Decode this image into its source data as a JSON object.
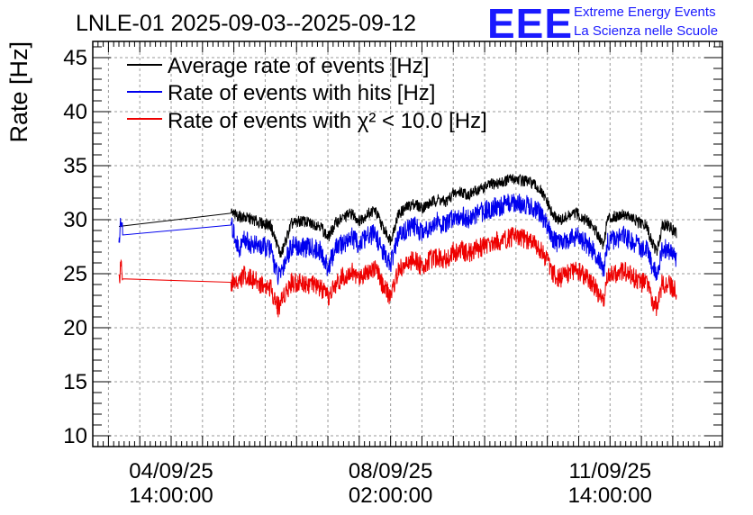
{
  "title": "LNLE-01 2025-09-03--2025-09-12",
  "logo": {
    "mark": "EEE",
    "line1": "Extreme Energy Events",
    "line2": "La Scienza nelle Scuole",
    "color": "#1a1aff"
  },
  "chart_data": {
    "type": "line",
    "title": "LNLE-01 2025-09-03--2025-09-12",
    "xlabel": "",
    "ylabel": "Rate [Hz]",
    "x_unit": "hours since 2025-09-03 00:00",
    "xlim": [
      8,
      249
    ],
    "ylim": [
      9,
      46.5
    ],
    "yticks": [
      10,
      15,
      20,
      25,
      30,
      35,
      40,
      45
    ],
    "xticks": [
      {
        "x": 38,
        "label": [
          "04/09/25",
          "14:00:00"
        ]
      },
      {
        "x": 122,
        "label": [
          "08/09/25",
          "02:00:00"
        ]
      },
      {
        "x": 206,
        "label": [
          "11/09/25",
          "14:00:00"
        ]
      }
    ],
    "grid": true,
    "legend_position": "top-left",
    "series": [
      {
        "name": "Average rate of events [Hz]",
        "color": "#000000",
        "gap": [
          18,
          61
        ],
        "points": [
          [
            18,
            29.5
          ],
          [
            18.7,
            30.4
          ],
          [
            19.5,
            30.2
          ],
          [
            61,
            30.6
          ],
          [
            64,
            30.3
          ],
          [
            68,
            30.1
          ],
          [
            72,
            29.7
          ],
          [
            76,
            29.5
          ],
          [
            80,
            26.7
          ],
          [
            84,
            29.6
          ],
          [
            88,
            29.9
          ],
          [
            92,
            29.6
          ],
          [
            95,
            29.5
          ],
          [
            98,
            28.3
          ],
          [
            101,
            29.7
          ],
          [
            104,
            30.2
          ],
          [
            107,
            30.6
          ],
          [
            110,
            29.9
          ],
          [
            113,
            30.5
          ],
          [
            116,
            30.9
          ],
          [
            119,
            29.3
          ],
          [
            122,
            28.1
          ],
          [
            125,
            30.5
          ],
          [
            128,
            31.1
          ],
          [
            131,
            31.5
          ],
          [
            134,
            31.1
          ],
          [
            137,
            31.5
          ],
          [
            140,
            31.9
          ],
          [
            143,
            31.6
          ],
          [
            146,
            32.4
          ],
          [
            149,
            32.6
          ],
          [
            152,
            32.3
          ],
          [
            155,
            32.7
          ],
          [
            158,
            33.0
          ],
          [
            161,
            33.3
          ],
          [
            164,
            33.4
          ],
          [
            167,
            33.7
          ],
          [
            170,
            33.8
          ],
          [
            173,
            33.6
          ],
          [
            176,
            33.4
          ],
          [
            179,
            32.8
          ],
          [
            182,
            31.6
          ],
          [
            184,
            30.4
          ],
          [
            187,
            29.9
          ],
          [
            190,
            30.3
          ],
          [
            193,
            30.6
          ],
          [
            196,
            30.1
          ],
          [
            199,
            29.5
          ],
          [
            202,
            28.4
          ],
          [
            203.5,
            27.6
          ],
          [
            205,
            30.1
          ],
          [
            208,
            30.3
          ],
          [
            211,
            30.6
          ],
          [
            214,
            30.2
          ],
          [
            217,
            29.7
          ],
          [
            220,
            29.4
          ],
          [
            222,
            27.9
          ],
          [
            224,
            27.0
          ],
          [
            226,
            29.6
          ],
          [
            229,
            29.3
          ],
          [
            231.5,
            28.7
          ]
        ]
      },
      {
        "name": "Rate of events with hits [Hz]",
        "color": "#0000ee",
        "gap": [
          19.5,
          61
        ],
        "points": [
          [
            18,
            27.8
          ],
          [
            18.7,
            29.6
          ],
          [
            19.5,
            28.8
          ],
          [
            61,
            29.5
          ],
          [
            64,
            27.2
          ],
          [
            66,
            28.3
          ],
          [
            68,
            27.8
          ],
          [
            72,
            27.5
          ],
          [
            76,
            27.3
          ],
          [
            79,
            24.6
          ],
          [
            81,
            25.8
          ],
          [
            84,
            27.6
          ],
          [
            88,
            27.4
          ],
          [
            92,
            27.4
          ],
          [
            95,
            27.1
          ],
          [
            98,
            25.5
          ],
          [
            101,
            27.4
          ],
          [
            104,
            27.8
          ],
          [
            107,
            28.4
          ],
          [
            110,
            27.7
          ],
          [
            113,
            28.4
          ],
          [
            116,
            28.7
          ],
          [
            119,
            27.0
          ],
          [
            122,
            25.9
          ],
          [
            125,
            28.4
          ],
          [
            128,
            29.1
          ],
          [
            131,
            29.4
          ],
          [
            134,
            28.9
          ],
          [
            137,
            29.4
          ],
          [
            140,
            29.8
          ],
          [
            143,
            29.4
          ],
          [
            146,
            30.3
          ],
          [
            149,
            30.4
          ],
          [
            152,
            30.0
          ],
          [
            155,
            30.5
          ],
          [
            158,
            30.8
          ],
          [
            161,
            31.1
          ],
          [
            164,
            31.2
          ],
          [
            167,
            31.5
          ],
          [
            170,
            31.6
          ],
          [
            173,
            31.4
          ],
          [
            176,
            31.3
          ],
          [
            179,
            30.6
          ],
          [
            182,
            29.4
          ],
          [
            184,
            28.2
          ],
          [
            187,
            27.7
          ],
          [
            190,
            28.2
          ],
          [
            193,
            28.5
          ],
          [
            196,
            28.0
          ],
          [
            199,
            27.3
          ],
          [
            202,
            26.2
          ],
          [
            203.5,
            25.3
          ],
          [
            205,
            28.0
          ],
          [
            208,
            28.2
          ],
          [
            211,
            28.5
          ],
          [
            214,
            28.0
          ],
          [
            217,
            27.5
          ],
          [
            220,
            27.3
          ],
          [
            222,
            25.8
          ],
          [
            224,
            24.8
          ],
          [
            226,
            27.4
          ],
          [
            229,
            27.1
          ],
          [
            231.5,
            26.5
          ]
        ]
      },
      {
        "name": "Rate of events with χ² < 10.0 [Hz]",
        "color": "#ee0000",
        "gap": [
          19.5,
          61
        ],
        "points": [
          [
            18,
            24.0
          ],
          [
            18.7,
            26.0
          ],
          [
            19.5,
            24.7
          ],
          [
            61,
            24.2
          ],
          [
            64,
            24.3
          ],
          [
            66,
            24.9
          ],
          [
            68,
            24.6
          ],
          [
            72,
            24.1
          ],
          [
            76,
            23.7
          ],
          [
            79,
            21.9
          ],
          [
            81,
            23.0
          ],
          [
            84,
            24.2
          ],
          [
            88,
            24.2
          ],
          [
            92,
            24.0
          ],
          [
            95,
            23.7
          ],
          [
            98,
            22.7
          ],
          [
            101,
            24.0
          ],
          [
            104,
            24.8
          ],
          [
            107,
            25.2
          ],
          [
            110,
            24.6
          ],
          [
            113,
            25.3
          ],
          [
            116,
            25.6
          ],
          [
            119,
            23.9
          ],
          [
            122,
            22.9
          ],
          [
            125,
            25.3
          ],
          [
            128,
            25.9
          ],
          [
            131,
            26.2
          ],
          [
            134,
            25.7
          ],
          [
            137,
            26.2
          ],
          [
            140,
            26.6
          ],
          [
            143,
            26.3
          ],
          [
            146,
            27.0
          ],
          [
            149,
            27.2
          ],
          [
            152,
            26.9
          ],
          [
            155,
            27.3
          ],
          [
            158,
            27.6
          ],
          [
            161,
            27.9
          ],
          [
            164,
            28.0
          ],
          [
            167,
            28.3
          ],
          [
            170,
            28.5
          ],
          [
            173,
            28.2
          ],
          [
            176,
            28.0
          ],
          [
            179,
            27.4
          ],
          [
            182,
            26.2
          ],
          [
            184,
            25.0
          ],
          [
            187,
            24.6
          ],
          [
            190,
            25.0
          ],
          [
            193,
            25.4
          ],
          [
            196,
            24.9
          ],
          [
            199,
            24.2
          ],
          [
            202,
            23.0
          ],
          [
            203.5,
            22.3
          ],
          [
            205,
            24.8
          ],
          [
            208,
            25.0
          ],
          [
            211,
            25.3
          ],
          [
            214,
            24.8
          ],
          [
            217,
            24.3
          ],
          [
            220,
            24.0
          ],
          [
            222,
            22.6
          ],
          [
            224,
            21.8
          ],
          [
            226,
            24.2
          ],
          [
            229,
            23.9
          ],
          [
            231.5,
            23.3
          ]
        ]
      }
    ]
  }
}
